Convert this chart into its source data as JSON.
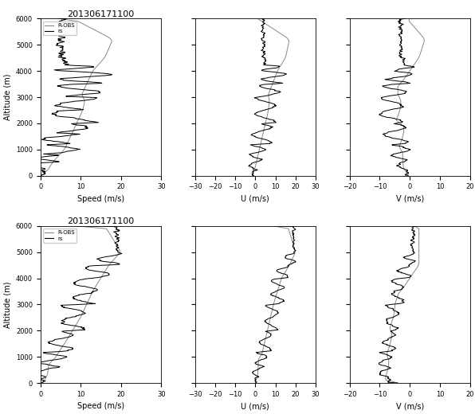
{
  "title": "201306171100",
  "legend_line1": "R-OBS",
  "legend_line2": "rs",
  "altitude_max": 6000,
  "altitude_min": 0,
  "speed_xlim": [
    0,
    30
  ],
  "u_xlim": [
    -30,
    30
  ],
  "v_xlim": [
    -20,
    20
  ],
  "speed_xticks": [
    0,
    10,
    20,
    30
  ],
  "u_xticks": [
    -30,
    -20,
    -10,
    0,
    10,
    20,
    30
  ],
  "v_xticks": [
    -20,
    -10,
    0,
    10,
    20
  ],
  "speed_xlabel": "Speed (m/s)",
  "u_xlabel": "U (m/s)",
  "v_xlabel": "V (m/s)",
  "altitude_ylabel": "Altitude (m)",
  "wpr_color": "#888888",
  "rs_color": "#000000",
  "title_fontsize": 8,
  "label_fontsize": 7,
  "tick_fontsize": 6,
  "legend_fontsize": 5,
  "linewidth_wpr": 0.7,
  "linewidth_rs": 0.7,
  "background": "#ffffff"
}
